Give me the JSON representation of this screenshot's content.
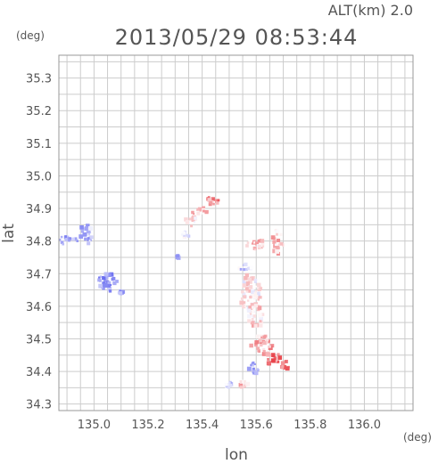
{
  "header": {
    "altitude": "ALT(km) 2.0",
    "timestamp": "2013/05/29 08:53:44"
  },
  "chart_data": {
    "type": "heatmap",
    "title": "2013/05/29 08:53:44",
    "xlabel": "lon",
    "ylabel": "lat",
    "xunit": "(deg)",
    "yunit": "(deg)",
    "xlim": [
      134.87,
      136.18
    ],
    "ylim": [
      34.28,
      35.37
    ],
    "xticks": [
      135.0,
      135.2,
      135.4,
      135.6,
      135.8,
      136.0
    ],
    "yticks": [
      34.3,
      34.4,
      34.5,
      34.6,
      34.7,
      34.8,
      34.9,
      35.0,
      35.1,
      35.2,
      35.3
    ],
    "grid": true,
    "colors": {
      "positive": "#e8454c",
      "negative": "#6a6ef0",
      "frame": "#999999",
      "grid": "#cccccc"
    },
    "echo_regions": [
      {
        "lon": 134.9,
        "lat": 34.8,
        "rlon": 0.04,
        "rlat": 0.015,
        "v": -0.55
      },
      {
        "lon": 134.97,
        "lat": 34.82,
        "rlon": 0.025,
        "rlat": 0.03,
        "v": -0.45
      },
      {
        "lon": 135.05,
        "lat": 34.67,
        "rlon": 0.04,
        "rlat": 0.03,
        "v": -0.7
      },
      {
        "lon": 135.1,
        "lat": 34.64,
        "rlon": 0.01,
        "rlat": 0.008,
        "v": -0.6
      },
      {
        "lon": 135.43,
        "lat": 34.92,
        "rlon": 0.035,
        "rlat": 0.015,
        "v": 0.55
      },
      {
        "lon": 135.4,
        "lat": 34.89,
        "rlon": 0.04,
        "rlat": 0.012,
        "v": 0.35
      },
      {
        "lon": 135.36,
        "lat": 34.86,
        "rlon": 0.025,
        "rlat": 0.015,
        "v": 0.12
      },
      {
        "lon": 135.34,
        "lat": 34.82,
        "rlon": 0.015,
        "rlat": 0.01,
        "v": -0.2
      },
      {
        "lon": 135.31,
        "lat": 34.75,
        "rlon": 0.006,
        "rlat": 0.005,
        "v": -0.8
      },
      {
        "lon": 135.56,
        "lat": 34.72,
        "rlon": 0.025,
        "rlat": 0.015,
        "v": -0.3
      },
      {
        "lon": 135.6,
        "lat": 34.79,
        "rlon": 0.035,
        "rlat": 0.02,
        "v": 0.25
      },
      {
        "lon": 135.68,
        "lat": 34.8,
        "rlon": 0.02,
        "rlat": 0.04,
        "v": 0.3
      },
      {
        "lon": 135.58,
        "lat": 34.64,
        "rlon": 0.04,
        "rlat": 0.06,
        "v": 0.1
      },
      {
        "lon": 135.6,
        "lat": 34.57,
        "rlon": 0.03,
        "rlat": 0.04,
        "v": 0.2
      },
      {
        "lon": 135.62,
        "lat": 34.48,
        "rlon": 0.04,
        "rlat": 0.03,
        "v": 0.4
      },
      {
        "lon": 135.66,
        "lat": 34.44,
        "rlon": 0.03,
        "rlat": 0.02,
        "v": 0.7
      },
      {
        "lon": 135.59,
        "lat": 34.41,
        "rlon": 0.02,
        "rlat": 0.02,
        "v": -0.5
      },
      {
        "lon": 135.7,
        "lat": 34.42,
        "rlon": 0.025,
        "rlat": 0.015,
        "v": 0.6
      },
      {
        "lon": 135.55,
        "lat": 34.36,
        "rlon": 0.02,
        "rlat": 0.01,
        "v": 0.3
      },
      {
        "lon": 135.5,
        "lat": 34.36,
        "rlon": 0.012,
        "rlat": 0.01,
        "v": -0.3
      }
    ]
  }
}
